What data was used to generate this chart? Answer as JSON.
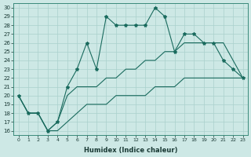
{
  "xlabel": "Humidex (Indice chaleur)",
  "bg_color": "#cde8e5",
  "grid_color": "#aad0cc",
  "line_color": "#1a6b5e",
  "xlim": [
    -0.5,
    23.5
  ],
  "ylim": [
    15.5,
    30.5
  ],
  "xticks": [
    0,
    1,
    2,
    3,
    4,
    5,
    6,
    7,
    8,
    9,
    10,
    11,
    12,
    13,
    14,
    15,
    16,
    17,
    18,
    19,
    20,
    21,
    22,
    23
  ],
  "yticks": [
    16,
    17,
    18,
    19,
    20,
    21,
    22,
    23,
    24,
    25,
    26,
    27,
    28,
    29,
    30
  ],
  "line_top": [
    20,
    18,
    18,
    16,
    17,
    21,
    23,
    26,
    23,
    29,
    28,
    28,
    28,
    28,
    30,
    29,
    25,
    27,
    27,
    26,
    26,
    24,
    23,
    22
  ],
  "line_upper": [
    20,
    18,
    18,
    16,
    17,
    20,
    21,
    21,
    21,
    22,
    22,
    23,
    23,
    24,
    24,
    25,
    25,
    26,
    26,
    26,
    26,
    26,
    24,
    22
  ],
  "line_lower": [
    20,
    18,
    18,
    16,
    16,
    17,
    18,
    19,
    19,
    19,
    20,
    20,
    20,
    20,
    21,
    21,
    21,
    22,
    22,
    22,
    22,
    22,
    22,
    22
  ]
}
